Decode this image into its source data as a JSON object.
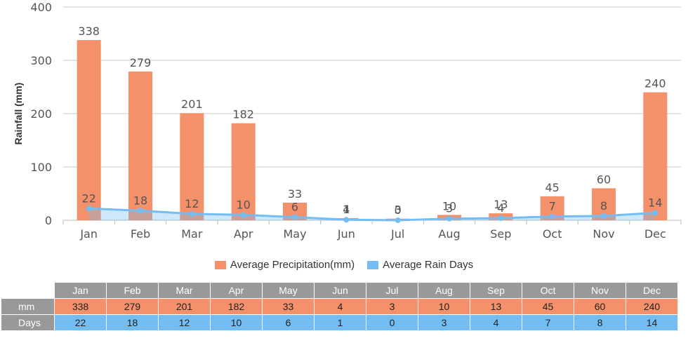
{
  "chart_data": {
    "type": "bar",
    "categories": [
      "Jan",
      "Feb",
      "Mar",
      "Apr",
      "May",
      "Jun",
      "Jul",
      "Aug",
      "Sep",
      "Oct",
      "Nov",
      "Dec"
    ],
    "series": [
      {
        "name": "Average Precipitation(mm)",
        "type": "bar",
        "color": "#f5916a",
        "values": [
          338,
          279,
          201,
          182,
          33,
          4,
          3,
          10,
          13,
          45,
          60,
          240
        ]
      },
      {
        "name": "Average Rain Days",
        "type": "line",
        "color": "#74bdf3",
        "values": [
          22,
          18,
          12,
          10,
          6,
          1,
          0,
          3,
          4,
          7,
          8,
          14
        ]
      }
    ],
    "ylabel": "Rainfall (mm)",
    "yticks": [
      0,
      100,
      200,
      300,
      400
    ],
    "ylim": [
      0,
      400
    ],
    "grid": true,
    "legend_position": "bottom"
  },
  "legend": {
    "precip_label": "Average Precipitation(mm)",
    "days_label": "Average Rain Days"
  },
  "table": {
    "months": [
      "Jan",
      "Feb",
      "Mar",
      "Apr",
      "May",
      "Jun",
      "Jul",
      "Aug",
      "Sep",
      "Oct",
      "Nov",
      "Dec"
    ],
    "rows": [
      {
        "label": "mm",
        "values": [
          "338",
          "279",
          "201",
          "182",
          "33",
          "4",
          "3",
          "10",
          "13",
          "45",
          "60",
          "240"
        ]
      },
      {
        "label": "Days",
        "values": [
          "22",
          "18",
          "12",
          "10",
          "6",
          "1",
          "0",
          "3",
          "4",
          "7",
          "8",
          "14"
        ]
      }
    ]
  },
  "colors": {
    "precip": "#f5916a",
    "days": "#74bdf3",
    "header": "#999999"
  }
}
